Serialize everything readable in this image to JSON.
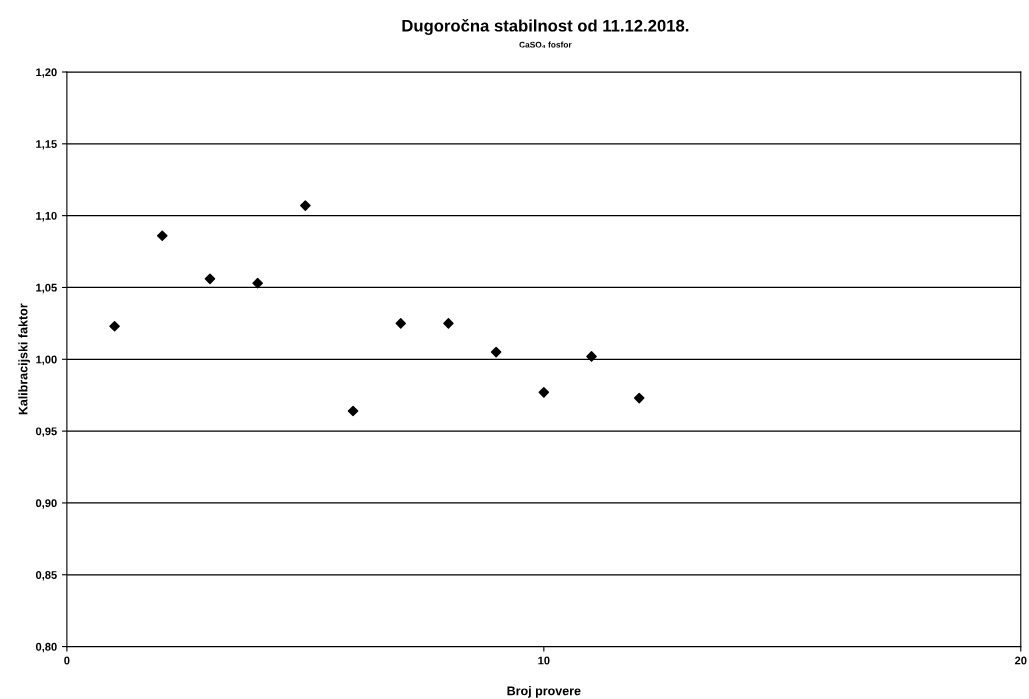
{
  "chart_data": {
    "type": "scatter",
    "title": "Dugoročna stabilnost od 11.12.2018.",
    "subtitle": "CaSO₄ fosfor",
    "xlabel": "Broj provere",
    "ylabel": "Kalibracijski faktor",
    "x": [
      1,
      2,
      3,
      4,
      5,
      6,
      7,
      8,
      9,
      10,
      11,
      12
    ],
    "series": [
      {
        "color": "#000000",
        "values": [
          1.023,
          1.086,
          1.056,
          1.053,
          1.107,
          0.964,
          1.025,
          1.025,
          1.005,
          0.977,
          1.002,
          0.973
        ]
      }
    ],
    "xlim": [
      0,
      20
    ],
    "xticks": [
      0,
      10,
      20
    ],
    "ylim": [
      0.8,
      1.2
    ],
    "yticks": [
      {
        "value": 0.8,
        "label": "0,80"
      },
      {
        "value": 0.85,
        "label": "0,85"
      },
      {
        "value": 0.9,
        "label": "0,90"
      },
      {
        "value": 0.95,
        "label": "0,95"
      },
      {
        "value": 1.0,
        "label": "1,00"
      },
      {
        "value": 1.05,
        "label": "1,05"
      },
      {
        "value": 1.1,
        "label": "1,10"
      },
      {
        "value": 1.15,
        "label": "1,15"
      },
      {
        "value": 1.2,
        "label": "1,20"
      }
    ],
    "grid": "y",
    "marker": "diamond"
  }
}
